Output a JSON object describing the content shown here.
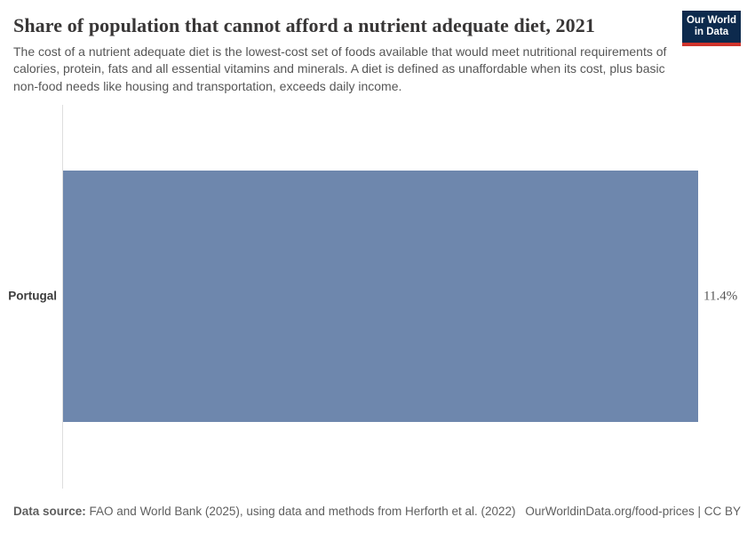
{
  "header": {
    "title": "Share of population that cannot afford a nutrient adequate diet, 2021",
    "subtitle": "The cost of a nutrient adequate diet is the lowest-cost set of foods available that would meet nutritional requirements of calories, protein, fats and all essential vitamins and minerals. A diet is defined as unaffordable when its cost, plus basic non-food needs like housing and transportation, exceeds daily income.",
    "logo": {
      "line1": "Our World",
      "line2": "in Data",
      "bg_color": "#0d2a4d",
      "accent_color": "#d0342c"
    }
  },
  "chart_data": {
    "type": "bar",
    "orientation": "horizontal",
    "title": "Share of population that cannot afford a nutrient adequate diet, 2021",
    "categories": [
      "Portugal"
    ],
    "values": [
      11.4
    ],
    "value_labels": [
      "11.4%"
    ],
    "xlabel": "",
    "ylabel": "",
    "xlim": [
      0,
      11.4
    ],
    "grid": false,
    "legend": "none",
    "bar_color": "#6e87ad",
    "axis_color": "#dedede"
  },
  "footer": {
    "source_label": "Data source:",
    "source_text": " FAO and World Bank (2025), using data and methods from Herforth et al. (2022)",
    "url_and_license": "OurWorldinData.org/food-prices | CC BY"
  }
}
